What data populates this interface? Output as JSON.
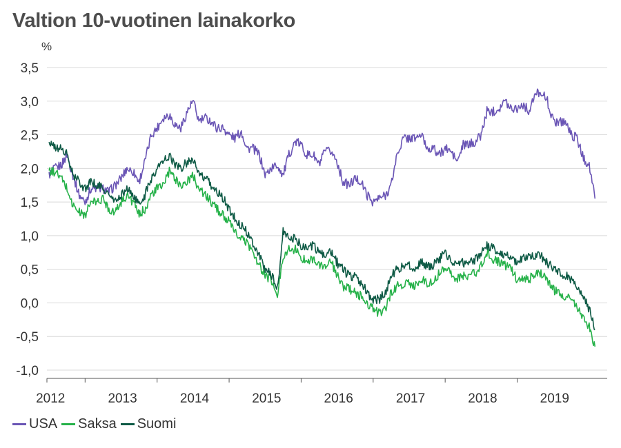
{
  "chart_data": {
    "type": "line",
    "title": "Valtion 10-vuotinen lainakorko",
    "ylabel": "%",
    "xlabel": "",
    "ylim": [
      -1.0,
      3.5
    ],
    "xlim": [
      2011.97,
      2019.75
    ],
    "yticks": [
      -1.0,
      -0.5,
      0.0,
      0.5,
      1.0,
      1.5,
      2.0,
      2.5,
      3.0,
      3.5
    ],
    "ytick_labels": [
      "-1,0",
      "-0,5",
      "0,0",
      "0,5",
      "1,0",
      "1,5",
      "2,0",
      "2,5",
      "3,0",
      "3,5"
    ],
    "xticks": [
      2012,
      2013,
      2014,
      2015,
      2016,
      2017,
      2018,
      2019
    ],
    "xtick_labels": [
      "2012",
      "2013",
      "2014",
      "2015",
      "2016",
      "2017",
      "2018",
      "2019"
    ],
    "grid": "horizontal",
    "legend": "bottom-left",
    "series": [
      {
        "name": "USA",
        "color": "#6a55b5",
        "x": [
          2012.0,
          2012.08,
          2012.17,
          2012.25,
          2012.33,
          2012.42,
          2012.5,
          2012.58,
          2012.67,
          2012.75,
          2012.83,
          2012.92,
          2013.0,
          2013.08,
          2013.17,
          2013.25,
          2013.33,
          2013.42,
          2013.5,
          2013.58,
          2013.67,
          2013.75,
          2013.83,
          2013.92,
          2014.0,
          2014.08,
          2014.17,
          2014.25,
          2014.33,
          2014.42,
          2014.5,
          2014.58,
          2014.67,
          2014.75,
          2014.83,
          2014.92,
          2015.0,
          2015.08,
          2015.17,
          2015.25,
          2015.33,
          2015.42,
          2015.5,
          2015.58,
          2015.67,
          2015.75,
          2015.83,
          2015.92,
          2016.0,
          2016.08,
          2016.17,
          2016.25,
          2016.33,
          2016.42,
          2016.5,
          2016.58,
          2016.67,
          2016.75,
          2016.83,
          2016.92,
          2017.0,
          2017.08,
          2017.17,
          2017.25,
          2017.33,
          2017.42,
          2017.5,
          2017.58,
          2017.67,
          2017.75,
          2017.83,
          2017.92,
          2018.0,
          2018.08,
          2018.17,
          2018.25,
          2018.33,
          2018.42,
          2018.5,
          2018.58,
          2018.67,
          2018.75,
          2018.83,
          2018.92,
          2019.0,
          2019.08,
          2019.17,
          2019.25,
          2019.33,
          2019.42,
          2019.5,
          2019.58
        ],
        "values": [
          1.9,
          2.0,
          2.05,
          2.2,
          1.9,
          1.6,
          1.5,
          1.7,
          1.7,
          1.7,
          1.65,
          1.75,
          1.85,
          2.0,
          1.95,
          1.8,
          2.1,
          2.5,
          2.6,
          2.75,
          2.8,
          2.65,
          2.6,
          2.85,
          3.0,
          2.7,
          2.75,
          2.7,
          2.6,
          2.6,
          2.5,
          2.45,
          2.55,
          2.3,
          2.3,
          2.2,
          1.9,
          2.0,
          2.05,
          1.9,
          2.2,
          2.4,
          2.35,
          2.2,
          2.2,
          2.05,
          2.25,
          2.25,
          2.1,
          1.8,
          1.75,
          1.85,
          1.8,
          1.6,
          1.5,
          1.55,
          1.6,
          1.75,
          2.2,
          2.45,
          2.45,
          2.45,
          2.5,
          2.3,
          2.3,
          2.2,
          2.3,
          2.25,
          2.1,
          2.35,
          2.35,
          2.4,
          2.5,
          2.85,
          2.85,
          2.9,
          3.0,
          2.9,
          2.9,
          2.95,
          2.85,
          3.1,
          3.15,
          3.0,
          2.7,
          2.7,
          2.7,
          2.5,
          2.45,
          2.15,
          2.05,
          1.55
        ]
      },
      {
        "name": "Saksa",
        "color": "#27b24a",
        "x": [
          2012.0,
          2012.08,
          2012.17,
          2012.25,
          2012.33,
          2012.42,
          2012.5,
          2012.58,
          2012.67,
          2012.75,
          2012.83,
          2012.92,
          2013.0,
          2013.08,
          2013.17,
          2013.25,
          2013.33,
          2013.42,
          2013.5,
          2013.58,
          2013.67,
          2013.75,
          2013.83,
          2013.92,
          2014.0,
          2014.08,
          2014.17,
          2014.25,
          2014.33,
          2014.42,
          2014.5,
          2014.58,
          2014.67,
          2014.75,
          2014.83,
          2014.92,
          2015.0,
          2015.08,
          2015.17,
          2015.25,
          2015.33,
          2015.42,
          2015.5,
          2015.58,
          2015.67,
          2015.75,
          2015.83,
          2015.92,
          2016.0,
          2016.08,
          2016.17,
          2016.25,
          2016.33,
          2016.42,
          2016.5,
          2016.58,
          2016.67,
          2016.75,
          2016.83,
          2016.92,
          2017.0,
          2017.08,
          2017.17,
          2017.25,
          2017.33,
          2017.42,
          2017.5,
          2017.58,
          2017.67,
          2017.75,
          2017.83,
          2017.92,
          2018.0,
          2018.08,
          2018.17,
          2018.25,
          2018.33,
          2018.42,
          2018.5,
          2018.58,
          2018.67,
          2018.75,
          2018.83,
          2018.92,
          2019.0,
          2019.08,
          2019.17,
          2019.25,
          2019.33,
          2019.42,
          2019.5,
          2019.58
        ],
        "values": [
          1.95,
          1.95,
          1.85,
          1.7,
          1.45,
          1.35,
          1.3,
          1.5,
          1.5,
          1.55,
          1.4,
          1.35,
          1.5,
          1.6,
          1.5,
          1.3,
          1.4,
          1.6,
          1.7,
          1.75,
          1.95,
          1.85,
          1.75,
          1.8,
          1.9,
          1.7,
          1.6,
          1.5,
          1.4,
          1.3,
          1.2,
          1.05,
          0.95,
          0.9,
          0.75,
          0.55,
          0.4,
          0.35,
          0.1,
          0.7,
          0.8,
          0.8,
          0.65,
          0.65,
          0.65,
          0.55,
          0.55,
          0.6,
          0.4,
          0.25,
          0.2,
          0.15,
          0.1,
          0.0,
          -0.1,
          -0.15,
          -0.1,
          0.15,
          0.25,
          0.25,
          0.3,
          0.25,
          0.35,
          0.3,
          0.3,
          0.45,
          0.55,
          0.45,
          0.35,
          0.4,
          0.4,
          0.45,
          0.55,
          0.75,
          0.65,
          0.6,
          0.55,
          0.5,
          0.35,
          0.35,
          0.35,
          0.45,
          0.45,
          0.35,
          0.2,
          0.15,
          0.1,
          0.05,
          -0.05,
          -0.2,
          -0.35,
          -0.65
        ]
      },
      {
        "name": "Suomi",
        "color": "#0e5a45",
        "x": [
          2012.0,
          2012.08,
          2012.17,
          2012.25,
          2012.33,
          2012.42,
          2012.5,
          2012.58,
          2012.67,
          2012.75,
          2012.83,
          2012.92,
          2013.0,
          2013.08,
          2013.17,
          2013.25,
          2013.33,
          2013.42,
          2013.5,
          2013.58,
          2013.67,
          2013.75,
          2013.83,
          2013.92,
          2014.0,
          2014.08,
          2014.17,
          2014.25,
          2014.33,
          2014.42,
          2014.5,
          2014.58,
          2014.67,
          2014.75,
          2014.83,
          2014.92,
          2015.0,
          2015.08,
          2015.17,
          2015.25,
          2015.33,
          2015.42,
          2015.5,
          2015.58,
          2015.67,
          2015.75,
          2015.83,
          2015.92,
          2016.0,
          2016.08,
          2016.17,
          2016.25,
          2016.33,
          2016.42,
          2016.5,
          2016.58,
          2016.67,
          2016.75,
          2016.83,
          2016.92,
          2017.0,
          2017.08,
          2017.17,
          2017.25,
          2017.33,
          2017.42,
          2017.5,
          2017.58,
          2017.67,
          2017.75,
          2017.83,
          2017.92,
          2018.0,
          2018.08,
          2018.17,
          2018.25,
          2018.33,
          2018.42,
          2018.5,
          2018.58,
          2018.67,
          2018.75,
          2018.83,
          2018.92,
          2019.0,
          2019.08,
          2019.17,
          2019.25,
          2019.33,
          2019.42,
          2019.5,
          2019.58
        ],
        "values": [
          2.4,
          2.3,
          2.3,
          2.2,
          1.9,
          1.8,
          1.7,
          1.8,
          1.75,
          1.7,
          1.6,
          1.5,
          1.6,
          1.7,
          1.6,
          1.45,
          1.6,
          1.85,
          2.0,
          2.1,
          2.2,
          2.05,
          2.0,
          2.1,
          2.15,
          1.9,
          1.85,
          1.75,
          1.65,
          1.55,
          1.4,
          1.25,
          1.15,
          1.05,
          0.9,
          0.7,
          0.5,
          0.45,
          0.2,
          1.05,
          1.0,
          0.95,
          0.85,
          0.85,
          0.85,
          0.75,
          0.7,
          0.75,
          0.6,
          0.5,
          0.4,
          0.4,
          0.3,
          0.15,
          0.05,
          0.05,
          0.15,
          0.4,
          0.5,
          0.55,
          0.55,
          0.5,
          0.6,
          0.55,
          0.55,
          0.65,
          0.75,
          0.65,
          0.55,
          0.6,
          0.6,
          0.65,
          0.75,
          0.85,
          0.8,
          0.75,
          0.7,
          0.7,
          0.6,
          0.65,
          0.7,
          0.7,
          0.7,
          0.6,
          0.5,
          0.45,
          0.4,
          0.35,
          0.25,
          0.1,
          -0.1,
          -0.4
        ]
      }
    ]
  }
}
